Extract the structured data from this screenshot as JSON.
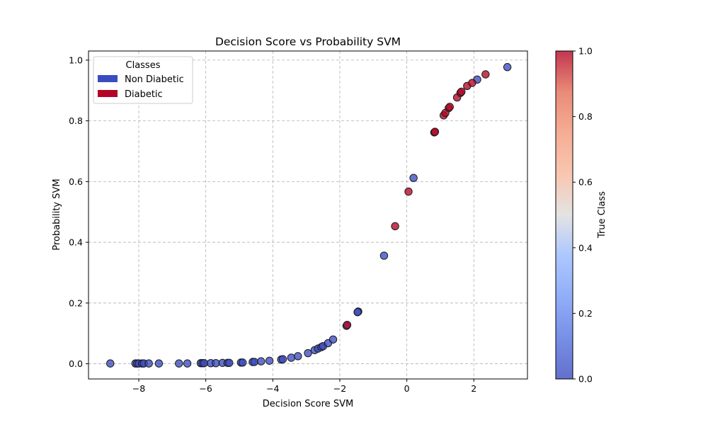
{
  "chart_data": {
    "type": "scatter",
    "title": "Decision Score vs Probability SVM",
    "xlabel": "Decision Score SVM",
    "ylabel": "Probability SVM",
    "xlim": [
      -9.5,
      3.6
    ],
    "ylim": [
      -0.05,
      1.03
    ],
    "xticks": [
      -8,
      -6,
      -4,
      -2,
      0,
      2
    ],
    "xtick_labels": [
      "−8",
      "−6",
      "−4",
      "−2",
      "0",
      "2"
    ],
    "yticks": [
      0.0,
      0.2,
      0.4,
      0.6,
      0.8,
      1.0
    ],
    "ytick_labels": [
      "0.0",
      "0.2",
      "0.4",
      "0.6",
      "0.8",
      "1.0"
    ],
    "grid": true,
    "legend": {
      "title": "Classes",
      "placement": "top-left",
      "entries": [
        {
          "label": "Non Diabetic",
          "color": "#3b4cc0"
        },
        {
          "label": "Diabetic",
          "color": "#b40426"
        }
      ]
    },
    "colorbar": {
      "label": "True Class",
      "range": [
        0.0,
        1.0
      ],
      "ticks": [
        0.0,
        0.2,
        0.4,
        0.6,
        0.8,
        1.0
      ],
      "tick_labels": [
        "0.0",
        "0.2",
        "0.4",
        "0.6",
        "0.8",
        "1.0"
      ],
      "colormap": "coolwarm"
    },
    "series": [
      {
        "class": 0,
        "x": [
          -8.85,
          -8.1,
          -8.05,
          -8.0,
          -7.9,
          -7.85,
          -7.7,
          -7.4,
          -6.8,
          -6.55,
          -6.15,
          -6.1,
          -6.05,
          -5.85,
          -5.7,
          -5.5,
          -5.35,
          -5.3,
          -4.95,
          -4.9,
          -4.6,
          -4.55,
          -4.35,
          -4.1,
          -3.75,
          -3.7,
          -3.45,
          -3.25,
          -2.95,
          -2.75,
          -2.65,
          -2.55,
          -2.5,
          -2.35,
          -2.2,
          -1.8,
          -1.45,
          -1.47,
          -0.68,
          0.2,
          2.1,
          3.0
        ],
        "y": [
          0.001,
          0.001,
          0.001,
          0.001,
          0.001,
          0.001,
          0.001,
          0.001,
          0.001,
          0.001,
          0.002,
          0.002,
          0.002,
          0.002,
          0.002,
          0.003,
          0.003,
          0.003,
          0.004,
          0.004,
          0.006,
          0.006,
          0.008,
          0.01,
          0.014,
          0.015,
          0.02,
          0.025,
          0.035,
          0.045,
          0.05,
          0.055,
          0.058,
          0.068,
          0.08,
          0.125,
          0.172,
          0.17,
          0.356,
          0.612,
          0.936,
          0.977
        ]
      },
      {
        "class": 1,
        "x": [
          -1.78,
          -0.35,
          0.05,
          0.82,
          0.84,
          1.1,
          1.15,
          1.25,
          1.28,
          1.5,
          1.6,
          1.63,
          1.8,
          1.95,
          2.35
        ],
        "y": [
          0.128,
          0.453,
          0.567,
          0.762,
          0.764,
          0.818,
          0.826,
          0.842,
          0.846,
          0.877,
          0.892,
          0.896,
          0.915,
          0.925,
          0.953
        ]
      }
    ]
  }
}
